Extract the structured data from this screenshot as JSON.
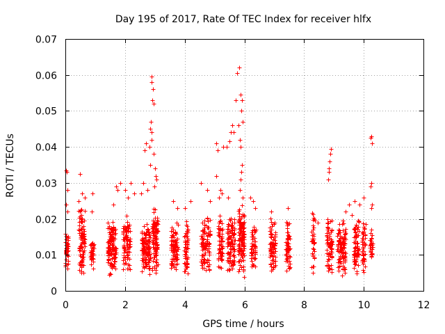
{
  "chart_data": {
    "type": "scatter",
    "title": "Day 195 of 2017, Rate Of TEC Index for receiver hlfx",
    "xlabel": "GPS time / hours",
    "ylabel": "ROTI / TECUs",
    "xlim": [
      0,
      12
    ],
    "ylim": [
      0,
      0.07
    ],
    "xticks": [
      "0",
      "2",
      "4",
      "6",
      "8",
      "10",
      "12"
    ],
    "yticks": [
      "0",
      "0.01",
      "0.02",
      "0.03",
      "0.04",
      "0.05",
      "0.06",
      "0.07"
    ],
    "grid": true,
    "marker": "+",
    "color": "#ff0000",
    "series": [
      {
        "name": "ROTI",
        "clusters": [
          {
            "x": 0.05,
            "w": 0.1,
            "lo": 0.006,
            "hi": 0.018,
            "n": 40,
            "extra": [
              [
                0.02,
                0.0335
              ],
              [
                0.05,
                0.033
              ],
              [
                0.08,
                0.028
              ],
              [
                0.03,
                0.024
              ],
              [
                0.07,
                0.022
              ]
            ]
          },
          {
            "x": 0.55,
            "w": 0.2,
            "lo": 0.004,
            "hi": 0.024,
            "n": 90,
            "extra": [
              [
                0.5,
                0.0325
              ],
              [
                0.55,
                0.027
              ],
              [
                0.45,
                0.025
              ],
              [
                0.65,
                0.026
              ]
            ]
          },
          {
            "x": 0.9,
            "w": 0.12,
            "lo": 0.006,
            "hi": 0.016,
            "n": 35,
            "extra": [
              [
                0.9,
                0.027
              ],
              [
                0.88,
                0.022
              ]
            ]
          },
          {
            "x": 1.55,
            "w": 0.28,
            "lo": 0.004,
            "hi": 0.02,
            "n": 130,
            "extra": [
              [
                1.7,
                0.029
              ],
              [
                1.75,
                0.028
              ],
              [
                1.6,
                0.024
              ],
              [
                1.85,
                0.03
              ]
            ]
          },
          {
            "x": 2.05,
            "w": 0.25,
            "lo": 0.005,
            "hi": 0.022,
            "n": 95,
            "extra": [
              [
                2.0,
                0.028
              ],
              [
                2.2,
                0.03
              ],
              [
                2.1,
                0.026
              ],
              [
                2.3,
                0.027
              ]
            ]
          },
          {
            "x": 2.7,
            "w": 0.3,
            "lo": 0.004,
            "hi": 0.02,
            "n": 130,
            "extra": [
              [
                2.6,
                0.03
              ],
              [
                2.65,
                0.039
              ],
              [
                2.7,
                0.041
              ],
              [
                2.75,
                0.028
              ],
              [
                2.55,
                0.027
              ]
            ]
          },
          {
            "x": 3.0,
            "w": 0.18,
            "lo": 0.004,
            "hi": 0.024,
            "n": 110,
            "extra": [
              [
                2.88,
                0.0595
              ],
              [
                2.9,
                0.058
              ],
              [
                2.93,
                0.056
              ],
              [
                2.92,
                0.053
              ],
              [
                2.95,
                0.052
              ],
              [
                2.87,
                0.047
              ],
              [
                2.85,
                0.045
              ],
              [
                2.88,
                0.044
              ],
              [
                2.9,
                0.042
              ],
              [
                2.82,
                0.04
              ],
              [
                2.85,
                0.035
              ],
              [
                2.95,
                0.038
              ],
              [
                3.0,
                0.034
              ],
              [
                3.02,
                0.032
              ],
              [
                3.05,
                0.031
              ],
              [
                2.98,
                0.029
              ]
            ]
          },
          {
            "x": 3.65,
            "w": 0.25,
            "lo": 0.004,
            "hi": 0.02,
            "n": 90,
            "extra": [
              [
                3.6,
                0.025
              ],
              [
                3.75,
                0.023
              ]
            ]
          },
          {
            "x": 4.05,
            "w": 0.12,
            "lo": 0.004,
            "hi": 0.02,
            "n": 55,
            "extra": [
              [
                4.0,
                0.023
              ],
              [
                4.2,
                0.025
              ]
            ]
          },
          {
            "x": 4.7,
            "w": 0.3,
            "lo": 0.004,
            "hi": 0.022,
            "n": 95,
            "extra": [
              [
                4.55,
                0.03
              ],
              [
                4.75,
                0.028
              ],
              [
                4.85,
                0.025
              ]
            ]
          },
          {
            "x": 5.2,
            "w": 0.15,
            "lo": 0.005,
            "hi": 0.022,
            "n": 65,
            "extra": [
              [
                5.05,
                0.041
              ],
              [
                5.1,
                0.039
              ],
              [
                5.05,
                0.032
              ],
              [
                5.2,
                0.028
              ],
              [
                5.25,
                0.027
              ],
              [
                5.15,
                0.026
              ]
            ]
          },
          {
            "x": 5.55,
            "w": 0.25,
            "lo": 0.004,
            "hi": 0.022,
            "n": 105,
            "extra": [
              [
                5.3,
                0.04
              ],
              [
                5.4,
                0.04
              ],
              [
                5.5,
                0.0415
              ],
              [
                5.55,
                0.044
              ],
              [
                5.6,
                0.046
              ],
              [
                5.7,
                0.053
              ],
              [
                5.65,
                0.044
              ],
              [
                5.45,
                0.026
              ]
            ]
          },
          {
            "x": 5.9,
            "w": 0.2,
            "lo": 0.003,
            "hi": 0.025,
            "n": 125,
            "extra": [
              [
                5.75,
                0.0605
              ],
              [
                5.82,
                0.062
              ],
              [
                5.88,
                0.0545
              ],
              [
                5.92,
                0.053
              ],
              [
                5.9,
                0.05
              ],
              [
                5.95,
                0.047
              ],
              [
                5.8,
                0.046
              ],
              [
                5.85,
                0.042
              ],
              [
                5.88,
                0.04
              ],
              [
                5.92,
                0.035
              ],
              [
                5.9,
                0.033
              ],
              [
                5.88,
                0.031
              ],
              [
                5.86,
                0.028
              ],
              [
                5.94,
                0.026
              ]
            ]
          },
          {
            "x": 6.3,
            "w": 0.15,
            "lo": 0.004,
            "hi": 0.02,
            "n": 55,
            "extra": [
              [
                6.2,
                0.026
              ],
              [
                6.3,
                0.025
              ],
              [
                6.35,
                0.023
              ]
            ]
          },
          {
            "x": 6.95,
            "w": 0.2,
            "lo": 0.004,
            "hi": 0.021,
            "n": 75,
            "extra": [
              [
                6.9,
                0.022
              ]
            ]
          },
          {
            "x": 7.45,
            "w": 0.15,
            "lo": 0.004,
            "hi": 0.02,
            "n": 55,
            "extra": [
              [
                7.45,
                0.023
              ]
            ]
          },
          {
            "x": 8.3,
            "w": 0.12,
            "lo": 0.004,
            "hi": 0.022,
            "n": 35,
            "extra": [
              [
                8.45,
                0.019
              ]
            ]
          },
          {
            "x": 8.85,
            "w": 0.18,
            "lo": 0.004,
            "hi": 0.022,
            "n": 75,
            "extra": [
              [
                8.8,
                0.031
              ],
              [
                8.82,
                0.034
              ],
              [
                8.85,
                0.036
              ],
              [
                8.88,
                0.038
              ],
              [
                8.9,
                0.0395
              ],
              [
                8.83,
                0.033
              ]
            ]
          },
          {
            "x": 9.25,
            "w": 0.28,
            "lo": 0.004,
            "hi": 0.02,
            "n": 110,
            "extra": [
              [
                9.4,
                0.022
              ],
              [
                9.5,
                0.024
              ],
              [
                9.6,
                0.021
              ]
            ]
          },
          {
            "x": 9.75,
            "w": 0.18,
            "lo": 0.004,
            "hi": 0.022,
            "n": 75,
            "extra": [
              [
                9.7,
                0.025
              ],
              [
                9.85,
                0.024
              ]
            ]
          },
          {
            "x": 10.0,
            "w": 0.12,
            "lo": 0.004,
            "hi": 0.02,
            "n": 45,
            "extra": [
              [
                10.0,
                0.026
              ]
            ]
          },
          {
            "x": 10.25,
            "w": 0.08,
            "lo": 0.008,
            "hi": 0.019,
            "n": 30,
            "extra": [
              [
                10.25,
                0.043
              ],
              [
                10.22,
                0.0425
              ],
              [
                10.28,
                0.041
              ],
              [
                10.25,
                0.03
              ],
              [
                10.22,
                0.029
              ],
              [
                10.27,
                0.024
              ],
              [
                10.25,
                0.023
              ]
            ]
          }
        ]
      }
    ]
  }
}
